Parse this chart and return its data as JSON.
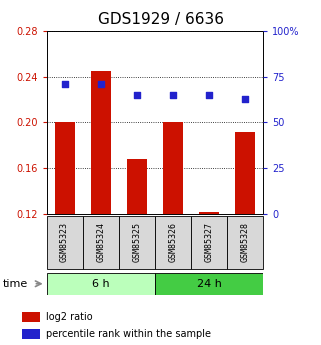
{
  "title": "GDS1929 / 6636",
  "samples": [
    "GSM85323",
    "GSM85324",
    "GSM85325",
    "GSM85326",
    "GSM85327",
    "GSM85328"
  ],
  "log2_ratio": [
    0.2,
    0.245,
    0.168,
    0.2,
    0.122,
    0.192
  ],
  "percentile_rank": [
    71,
    71,
    65,
    65,
    65,
    63
  ],
  "bar_color": "#cc1100",
  "dot_color": "#2222cc",
  "bar_bottom": 0.12,
  "ylim_left": [
    0.12,
    0.28
  ],
  "ylim_right": [
    0,
    100
  ],
  "yticks_left": [
    0.12,
    0.16,
    0.2,
    0.24,
    0.28
  ],
  "yticks_right": [
    0,
    25,
    50,
    75,
    100
  ],
  "groups": [
    {
      "label": "6 h",
      "indices": [
        0,
        1,
        2
      ],
      "color": "#bbffbb"
    },
    {
      "label": "24 h",
      "indices": [
        3,
        4,
        5
      ],
      "color": "#44cc44"
    }
  ],
  "time_label": "time",
  "legend_items": [
    {
      "label": "log2 ratio",
      "color": "#cc1100"
    },
    {
      "label": "percentile rank within the sample",
      "color": "#2222cc"
    }
  ],
  "bg_color": "#ffffff",
  "title_fontsize": 11,
  "axis_fontsize": 7,
  "bar_width": 0.55,
  "sample_fontsize": 6,
  "group_fontsize": 8,
  "legend_fontsize": 7
}
